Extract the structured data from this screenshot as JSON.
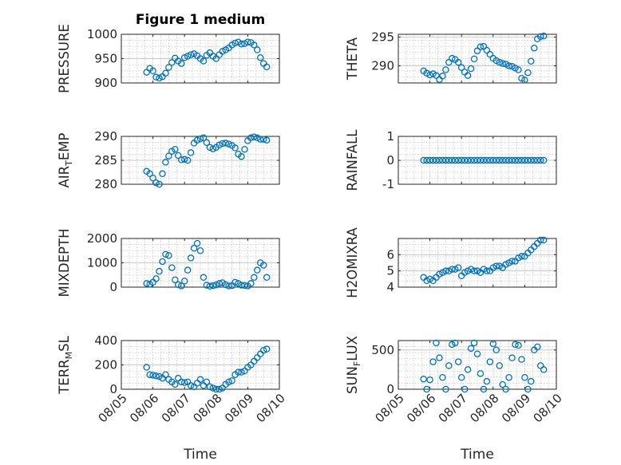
{
  "figure_title": "Figure 1 medium",
  "chart_data": [
    {
      "type": "scatter",
      "title": "Figure 1 medium",
      "ylabel": "PRESSURE",
      "ylabel_sub": "",
      "ylabel_suffix": "",
      "xlabel": "",
      "ylim": [
        900,
        1000
      ],
      "yticks": [
        900,
        950,
        1000
      ],
      "grid": true,
      "x": [
        5.8,
        5.9,
        6.0,
        6.1,
        6.2,
        6.3,
        6.4,
        6.5,
        6.6,
        6.7,
        6.8,
        6.9,
        7.0,
        7.1,
        7.2,
        7.3,
        7.4,
        7.5,
        7.6,
        7.7,
        7.8,
        7.9,
        8.0,
        8.1,
        8.2,
        8.3,
        8.4,
        8.5,
        8.6,
        8.7,
        8.8,
        8.9,
        9.0,
        9.1,
        9.2,
        9.3,
        9.4,
        9.5,
        9.6
      ],
      "y": [
        922,
        930,
        925,
        912,
        910,
        913,
        920,
        932,
        942,
        951,
        945,
        940,
        952,
        955,
        958,
        960,
        956,
        950,
        945,
        957,
        962,
        955,
        950,
        958,
        965,
        968,
        972,
        978,
        982,
        984,
        980,
        981,
        984,
        983,
        978,
        968,
        952,
        940,
        933
      ]
    },
    {
      "type": "scatter",
      "title": "",
      "ylabel": "THETA",
      "ylabel_sub": "",
      "ylabel_suffix": "",
      "xlabel": "",
      "ylim": [
        287,
        295.5
      ],
      "yticks": [
        290,
        295
      ],
      "grid": true,
      "x": [
        5.8,
        5.9,
        6.0,
        6.1,
        6.2,
        6.3,
        6.4,
        6.5,
        6.6,
        6.7,
        6.8,
        6.9,
        7.0,
        7.1,
        7.2,
        7.3,
        7.4,
        7.5,
        7.6,
        7.7,
        7.8,
        7.9,
        8.0,
        8.1,
        8.2,
        8.3,
        8.4,
        8.5,
        8.6,
        8.7,
        8.8,
        8.9,
        9.0,
        9.1,
        9.2,
        9.3,
        9.4,
        9.5,
        9.6
      ],
      "y": [
        289.1,
        288.7,
        288.4,
        288.6,
        288.3,
        287.6,
        288.2,
        289.3,
        290.6,
        291.3,
        291.1,
        290.6,
        289.7,
        288.9,
        288.3,
        289.5,
        291.2,
        292.6,
        293.3,
        293.4,
        292.7,
        292.0,
        291.3,
        290.9,
        290.6,
        290.4,
        290.3,
        290.0,
        289.9,
        289.6,
        289.3,
        287.8,
        287.5,
        288.8,
        290.8,
        293.1,
        294.7,
        295.1,
        295.2
      ]
    },
    {
      "type": "scatter",
      "title": "",
      "ylabel": "AIR",
      "ylabel_sub": "T",
      "ylabel_suffix": "EMP",
      "xlabel": "",
      "ylim": [
        280,
        290
      ],
      "yticks": [
        280,
        285,
        290
      ],
      "grid": true,
      "x": [
        5.8,
        5.9,
        6.0,
        6.1,
        6.2,
        6.3,
        6.4,
        6.5,
        6.6,
        6.7,
        6.8,
        6.9,
        7.0,
        7.1,
        7.2,
        7.3,
        7.4,
        7.5,
        7.6,
        7.7,
        7.8,
        7.9,
        8.0,
        8.1,
        8.2,
        8.3,
        8.4,
        8.5,
        8.6,
        8.7,
        8.8,
        8.9,
        9.0,
        9.1,
        9.2,
        9.3,
        9.4,
        9.5,
        9.6
      ],
      "y": [
        282.7,
        282.2,
        281.3,
        280.3,
        280.0,
        282.2,
        284.6,
        285.9,
        286.9,
        287.3,
        286.0,
        285.1,
        285.2,
        285.0,
        286.6,
        288.6,
        289.2,
        289.5,
        289.7,
        288.7,
        287.7,
        287.4,
        287.7,
        288.2,
        288.5,
        288.6,
        288.4,
        288.1,
        287.6,
        286.3,
        285.8,
        287.3,
        289.1,
        289.7,
        289.9,
        289.7,
        289.4,
        289.4,
        289.2
      ]
    },
    {
      "type": "scatter",
      "title": "",
      "ylabel": "RAINFALL",
      "ylabel_sub": "",
      "ylabel_suffix": "",
      "xlabel": "",
      "ylim": [
        -1,
        1
      ],
      "yticks": [
        -1,
        0,
        1
      ],
      "grid": true,
      "x": [
        5.8,
        5.9,
        6.0,
        6.1,
        6.2,
        6.3,
        6.4,
        6.5,
        6.6,
        6.7,
        6.8,
        6.9,
        7.0,
        7.1,
        7.2,
        7.3,
        7.4,
        7.5,
        7.6,
        7.7,
        7.8,
        7.9,
        8.0,
        8.1,
        8.2,
        8.3,
        8.4,
        8.5,
        8.6,
        8.7,
        8.8,
        8.9,
        9.0,
        9.1,
        9.2,
        9.3,
        9.4,
        9.5,
        9.6
      ],
      "y": [
        0,
        0,
        0,
        0,
        0,
        0,
        0,
        0,
        0,
        0,
        0,
        0,
        0,
        0,
        0,
        0,
        0,
        0,
        0,
        0,
        0,
        0,
        0,
        0,
        0,
        0,
        0,
        0,
        0,
        0,
        0,
        0,
        0,
        0,
        0,
        0,
        0,
        0,
        0
      ]
    },
    {
      "type": "scatter",
      "title": "",
      "ylabel": "MIXDEPTH",
      "ylabel_sub": "",
      "ylabel_suffix": "",
      "xlabel": "",
      "ylim": [
        0,
        2000
      ],
      "yticks": [
        0,
        1000,
        2000
      ],
      "grid": true,
      "x": [
        5.8,
        5.9,
        6.0,
        6.1,
        6.2,
        6.3,
        6.4,
        6.5,
        6.6,
        6.7,
        6.8,
        6.9,
        7.0,
        7.1,
        7.2,
        7.3,
        7.4,
        7.5,
        7.6,
        7.7,
        7.8,
        7.9,
        8.0,
        8.1,
        8.2,
        8.3,
        8.4,
        8.5,
        8.6,
        8.7,
        8.8,
        8.9,
        9.0,
        9.1,
        9.2,
        9.3,
        9.4,
        9.5,
        9.6
      ],
      "y": [
        150,
        120,
        200,
        350,
        650,
        1050,
        1350,
        1300,
        800,
        300,
        100,
        50,
        250,
        700,
        1200,
        1600,
        1800,
        1500,
        400,
        80,
        40,
        60,
        90,
        150,
        180,
        100,
        50,
        60,
        200,
        150,
        80,
        70,
        50,
        150,
        400,
        700,
        1000,
        900,
        400
      ]
    },
    {
      "type": "scatter",
      "title": "",
      "ylabel": "H2OMIXRA",
      "ylabel_sub": "",
      "ylabel_suffix": "",
      "xlabel": "",
      "ylim": [
        4,
        7
      ],
      "yticks": [
        4,
        5,
        6
      ],
      "grid": true,
      "x": [
        5.8,
        5.9,
        6.0,
        6.1,
        6.2,
        6.3,
        6.4,
        6.5,
        6.6,
        6.7,
        6.8,
        6.9,
        7.0,
        7.1,
        7.2,
        7.3,
        7.4,
        7.5,
        7.6,
        7.7,
        7.8,
        7.9,
        8.0,
        8.1,
        8.2,
        8.3,
        8.4,
        8.5,
        8.6,
        8.7,
        8.8,
        8.9,
        9.0,
        9.1,
        9.2,
        9.3,
        9.4,
        9.5,
        9.6
      ],
      "y": [
        4.6,
        4.4,
        4.5,
        4.4,
        4.6,
        4.8,
        4.9,
        5.0,
        5.0,
        5.1,
        5.1,
        5.2,
        4.7,
        4.9,
        5.0,
        5.1,
        5.0,
        5.0,
        4.9,
        5.1,
        5.0,
        5.0,
        5.2,
        5.3,
        5.3,
        5.2,
        5.4,
        5.5,
        5.6,
        5.6,
        5.8,
        5.9,
        5.9,
        6.1,
        6.3,
        6.5,
        6.7,
        6.9,
        6.9
      ]
    },
    {
      "type": "scatter",
      "title": "",
      "ylabel": "TERR",
      "ylabel_sub": "M",
      "ylabel_suffix": "SL",
      "xlabel": "Time",
      "ylim": [
        0,
        400
      ],
      "yticks": [
        0,
        200,
        400
      ],
      "xticklabels": [
        "08/05",
        "08/06",
        "08/07",
        "08/08",
        "08/09",
        "08/10"
      ],
      "grid": true,
      "x": [
        5.8,
        5.9,
        6.0,
        6.1,
        6.2,
        6.3,
        6.4,
        6.5,
        6.6,
        6.7,
        6.8,
        6.9,
        7.0,
        7.1,
        7.2,
        7.3,
        7.4,
        7.5,
        7.6,
        7.7,
        7.8,
        7.9,
        8.0,
        8.1,
        8.2,
        8.3,
        8.4,
        8.5,
        8.6,
        8.7,
        8.8,
        8.9,
        9.0,
        9.1,
        9.2,
        9.3,
        9.4,
        9.5,
        9.6
      ],
      "y": [
        180,
        120,
        115,
        110,
        105,
        90,
        120,
        80,
        60,
        40,
        90,
        60,
        55,
        60,
        30,
        20,
        50,
        80,
        30,
        60,
        20,
        10,
        0,
        0,
        10,
        40,
        60,
        70,
        120,
        140,
        140,
        150,
        180,
        200,
        230,
        260,
        290,
        320,
        330
      ]
    },
    {
      "type": "scatter",
      "title": "",
      "ylabel": "SUN",
      "ylabel_sub": "F",
      "ylabel_suffix": "LUX",
      "xlabel": "Time",
      "ylim": [
        0,
        620
      ],
      "yticks": [
        0,
        500
      ],
      "xticklabels": [
        "08/05",
        "08/06",
        "08/07",
        "08/08",
        "08/09",
        "08/10"
      ],
      "grid": true,
      "x": [
        5.8,
        5.9,
        6.0,
        6.1,
        6.2,
        6.3,
        6.4,
        6.5,
        6.6,
        6.7,
        6.8,
        6.9,
        7.0,
        7.1,
        7.2,
        7.3,
        7.4,
        7.5,
        7.6,
        7.7,
        7.8,
        7.9,
        8.0,
        8.1,
        8.2,
        8.3,
        8.4,
        8.5,
        8.6,
        8.7,
        8.8,
        8.9,
        9.0,
        9.1,
        9.2,
        9.3,
        9.4,
        9.5,
        9.6
      ],
      "y": [
        130,
        0,
        120,
        350,
        590,
        400,
        150,
        0,
        300,
        570,
        590,
        350,
        150,
        0,
        250,
        520,
        590,
        450,
        200,
        0,
        100,
        350,
        580,
        500,
        300,
        60,
        0,
        150,
        400,
        570,
        560,
        380,
        150,
        0,
        100,
        500,
        540,
        300,
        250
      ]
    }
  ]
}
